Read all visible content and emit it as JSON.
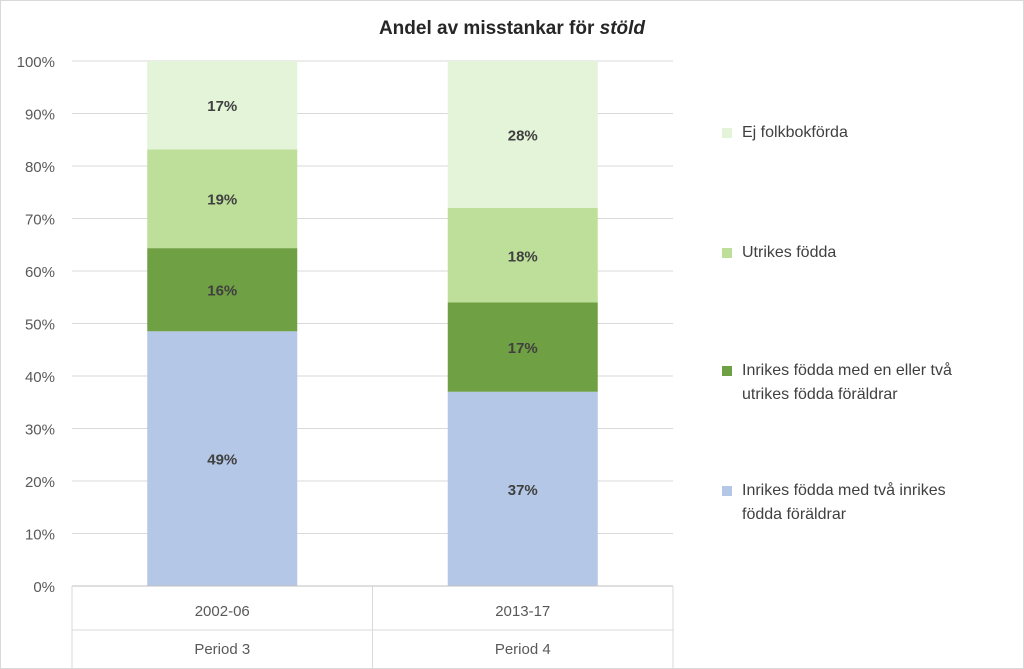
{
  "chart_data": {
    "type": "bar",
    "stacked": true,
    "percent_stacked": true,
    "title": "Andel av misstankar för stöld",
    "title_parts": [
      {
        "text": "Andel av misstankar för ",
        "italic": false
      },
      {
        "text": "stöld",
        "italic": true
      }
    ],
    "xlabel": "",
    "ylabel": "",
    "ylim": [
      0,
      100
    ],
    "yticks": [
      "0%",
      "10%",
      "20%",
      "30%",
      "40%",
      "50%",
      "60%",
      "70%",
      "80%",
      "90%",
      "100%"
    ],
    "categories": [
      "2002-06",
      "2013-17"
    ],
    "category_groups": [
      "Period 3",
      "Period 4"
    ],
    "grid": true,
    "legend_position": "right",
    "series": [
      {
        "name": "Inrikes födda med två inrikes födda föräldrar",
        "color": "#b4c7e7",
        "values": [
          49,
          37
        ],
        "labels": [
          "49%",
          "37%"
        ]
      },
      {
        "name": "Inrikes födda med en eller två utrikes födda föräldrar",
        "color": "#70a044",
        "values": [
          16,
          17
        ],
        "labels": [
          "16%",
          "17%"
        ]
      },
      {
        "name": "Utrikes födda",
        "color": "#bddf9a",
        "values": [
          19,
          18
        ],
        "labels": [
          "19%",
          "18%"
        ]
      },
      {
        "name": "Ej folkbokförda",
        "color": "#e4f4d8",
        "values": [
          17,
          28
        ],
        "labels": [
          "17%",
          "28%"
        ]
      }
    ]
  }
}
